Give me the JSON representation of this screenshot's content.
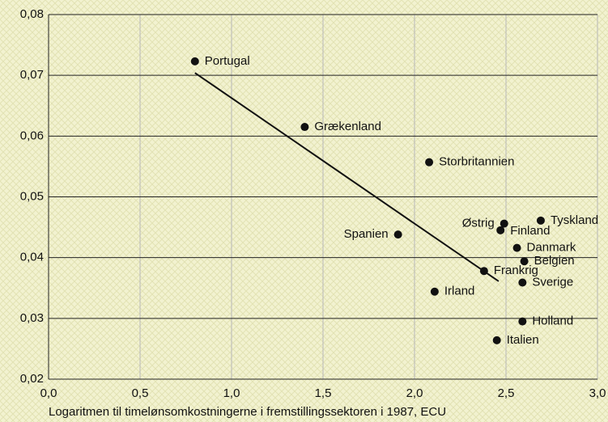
{
  "chart_data": {
    "type": "scatter",
    "x_label": "Logaritmen til timelønsomkostningerne i fremstillingssektoren i 1987, ECU",
    "labels": [
      "Portugal",
      "Grækenland",
      "Storbritannien",
      "Spanien",
      "Østrig",
      "Finland",
      "Tyskland",
      "Danmark",
      "Belgien",
      "Frankrig",
      "Sverige",
      "Irland",
      "Holland",
      "Italien"
    ],
    "x": [
      0.8,
      1.4,
      2.08,
      1.91,
      2.49,
      2.47,
      2.69,
      2.56,
      2.6,
      2.38,
      2.59,
      2.11,
      2.59,
      2.45
    ],
    "y": [
      0.0723,
      0.0615,
      0.0557,
      0.0438,
      0.0456,
      0.0445,
      0.0461,
      0.0416,
      0.0394,
      0.0378,
      0.0359,
      0.0344,
      0.0295,
      0.0264
    ],
    "color": "#111111",
    "trendline": {
      "x": [
        0.8,
        2.46
      ],
      "y": [
        0.0704,
        0.0361
      ]
    },
    "xlim": [
      0,
      3
    ],
    "ylim": [
      0.02,
      0.08
    ],
    "xticks": [
      {
        "value": 0,
        "label": "0,0"
      },
      {
        "value": 0.5,
        "label": "0,5"
      },
      {
        "value": 1,
        "label": "1,0"
      },
      {
        "value": 1.5,
        "label": "1,5"
      },
      {
        "value": 2,
        "label": "2,0"
      },
      {
        "value": 2.5,
        "label": "2,5"
      },
      {
        "value": 3,
        "label": "3,0"
      }
    ],
    "yticks": [
      {
        "value": 0.02,
        "label": "0,02"
      },
      {
        "value": 0.03,
        "label": "0,03"
      },
      {
        "value": 0.04,
        "label": "0,04"
      },
      {
        "value": 0.05,
        "label": "0,05"
      },
      {
        "value": 0.06,
        "label": "0,06"
      },
      {
        "value": 0.07,
        "label": "0,07"
      },
      {
        "value": 0.08,
        "label": "0,08"
      }
    ],
    "grid": true
  }
}
